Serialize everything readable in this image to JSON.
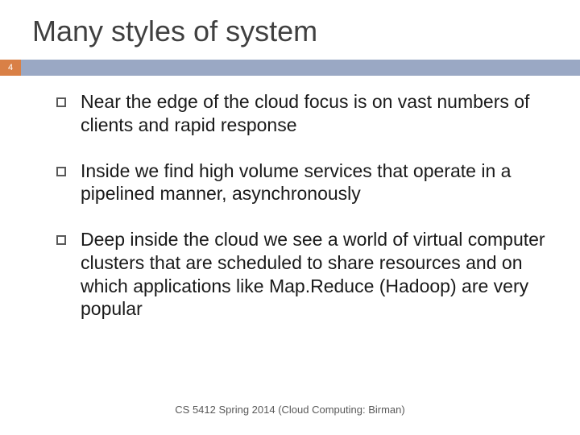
{
  "slide": {
    "title": "Many styles of system",
    "page_number": "4",
    "badge_color": "#d98046",
    "bar_color": "#9aa8c4",
    "bullet_border_color": "#595959",
    "title_color": "#404040",
    "title_fontsize": 36,
    "body_fontsize": 23,
    "body_color": "#1a1a1a",
    "background_color": "#ffffff",
    "bullets": [
      {
        "text": "Near the edge of the cloud focus is on vast numbers of clients and rapid response"
      },
      {
        "text": "Inside we find high volume services that operate in a pipelined manner, asynchronously"
      },
      {
        "text": "Deep inside the cloud we see a world of virtual computer clusters that are scheduled to share resources and on which applications like Map.Reduce (Hadoop) are very popular"
      }
    ],
    "footer": "CS 5412 Spring 2014 (Cloud Computing: Birman)",
    "footer_fontsize": 13,
    "footer_color": "#595959"
  }
}
